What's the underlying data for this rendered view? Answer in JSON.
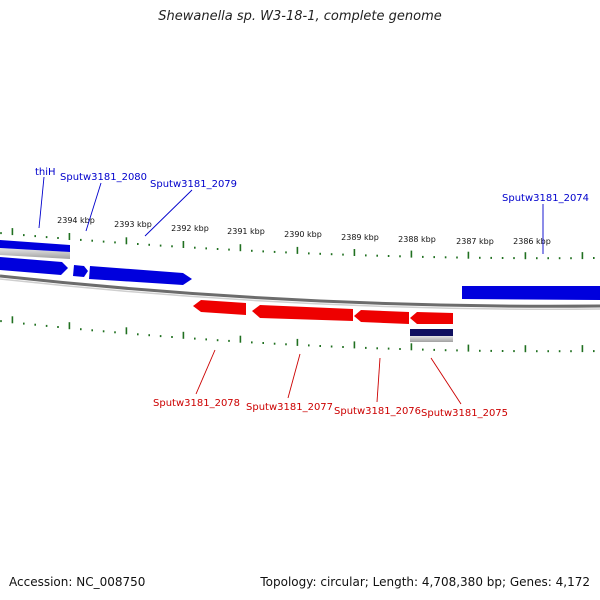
{
  "title": "Shewanella sp. W3-18-1, complete genome",
  "footer": {
    "accession": "Accession: NC_008750",
    "summary": "Topology: circular; Length: 4,708,380 bp; Genes: 4,172"
  },
  "colors": {
    "forward_gene": "#0000dd",
    "reverse_gene": "#ee0000",
    "other_feature": "#101060",
    "tick": "#207020",
    "backbone": "#808080"
  },
  "scale_labels": [
    "2394 kbp",
    "2393 kbp",
    "2392 kbp",
    "2391 kbp",
    "2390 kbp",
    "2389 kbp",
    "2388 kbp",
    "2387 kbp",
    "2386 kbp"
  ],
  "gene_labels": {
    "top": [
      "thiH",
      "Sputw3181_2080",
      "Sputw3181_2079",
      "Sputw3181_2074"
    ],
    "bottom": [
      "Sputw3181_2078",
      "Sputw3181_2077",
      "Sputw3181_2076",
      "Sputw3181_2075"
    ]
  }
}
